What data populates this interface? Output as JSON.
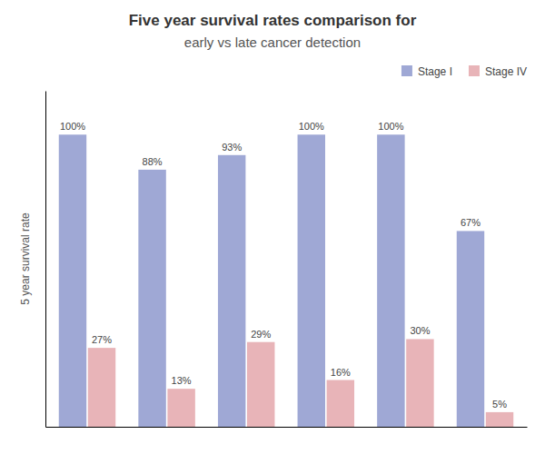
{
  "chart_data": {
    "type": "bar",
    "title": "Five year survival rates comparison for",
    "subtitle": "early vs late cancer detection",
    "ylabel": "5 year survival rate",
    "categories": [
      null,
      null,
      null,
      null,
      null,
      null
    ],
    "series": [
      {
        "name": "Stage I",
        "color": "#9fa8d5",
        "values": [
          100,
          88,
          93,
          100,
          100,
          67
        ],
        "value_labels": [
          "100%",
          "88%",
          "93%",
          "100%",
          "100%",
          "67%"
        ]
      },
      {
        "name": "Stage IV",
        "color": "#e8b4b8",
        "values": [
          27,
          13,
          29,
          16,
          30,
          5
        ],
        "value_labels": [
          "27%",
          "13%",
          "29%",
          "16%",
          "30%",
          "5%"
        ]
      }
    ],
    "ylim": [
      0,
      115
    ],
    "tick_labels": false,
    "data_labels": true,
    "legend": "upper right"
  }
}
